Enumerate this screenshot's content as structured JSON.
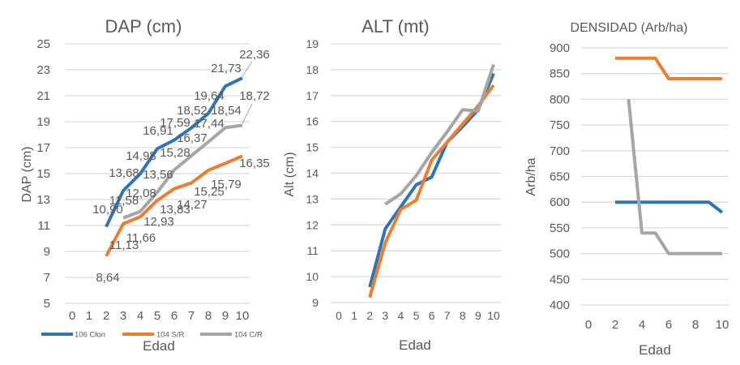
{
  "colors": {
    "106 Clon": "#2E75B6",
    "104 S/R": "#ED7D31",
    "104 C/R": "#A5A5A5",
    "grid": "#D9D9D9",
    "text": "#595959"
  },
  "chart_data": [
    {
      "type": "line",
      "title": "DAP (cm)",
      "xlabel": "Edad",
      "ylabel": "DAP (cm)",
      "x_ticks": [
        "0",
        "1",
        "2",
        "3",
        "4",
        "5",
        "6",
        "7",
        "8",
        "9",
        "10"
      ],
      "y_ticks": [
        "5",
        "7",
        "9",
        "11",
        "13",
        "15",
        "17",
        "19",
        "21",
        "23",
        "25"
      ],
      "ylim": [
        5,
        25
      ],
      "xlim": [
        0,
        10
      ],
      "grid": true,
      "legend": "bottom",
      "data_labels": true,
      "series": [
        {
          "name": "106 Clon",
          "x": [
            2,
            3,
            4,
            5,
            6,
            7,
            8,
            9,
            10
          ],
          "values": [
            10.9,
            13.68,
            14.98,
            16.91,
            17.59,
            18.52,
            19.64,
            21.73,
            22.36
          ],
          "labels": [
            "10,90",
            "13,68",
            "14,98",
            "16,91",
            "17,59",
            "18,52",
            "19,64",
            "21,73",
            "22,36"
          ]
        },
        {
          "name": "104 S/R",
          "x": [
            2,
            3,
            4,
            5,
            6,
            7,
            8,
            9,
            10
          ],
          "values": [
            8.64,
            11.13,
            11.66,
            12.93,
            13.83,
            14.27,
            15.25,
            15.79,
            16.35
          ],
          "labels": [
            "8,64",
            "11,13",
            "11,66",
            "12,93",
            "13,83",
            "14,27",
            "15,25",
            "15,79",
            "16,35"
          ]
        },
        {
          "name": "104 C/R",
          "x": [
            3,
            4,
            5,
            6,
            7,
            8,
            9,
            10
          ],
          "values": [
            11.58,
            12.08,
            13.56,
            15.28,
            16.37,
            17.44,
            18.54,
            18.72
          ],
          "labels": [
            "11,58",
            "12,08",
            "13,56",
            "15,28",
            "16,37",
            "17,44",
            "18,54",
            "18,72"
          ]
        }
      ]
    },
    {
      "type": "line",
      "title": "ALT (mt)",
      "xlabel": "Edad",
      "ylabel": "Alt (cm)",
      "x_ticks": [
        "0",
        "1",
        "2",
        "3",
        "4",
        "5",
        "6",
        "7",
        "8",
        "9",
        "10"
      ],
      "y_ticks": [
        "9",
        "10",
        "11",
        "12",
        "13",
        "14",
        "15",
        "16",
        "17",
        "18",
        "19"
      ],
      "ylim": [
        9,
        19
      ],
      "xlim": [
        0,
        10
      ],
      "grid": true,
      "series": [
        {
          "name": "106 Clon",
          "x": [
            2,
            3,
            4,
            5,
            6,
            7,
            8,
            9,
            10
          ],
          "values": [
            9.6,
            11.85,
            12.7,
            13.55,
            13.85,
            15.2,
            15.8,
            16.45,
            17.85
          ]
        },
        {
          "name": "104 S/R",
          "x": [
            2,
            3,
            4,
            5,
            6,
            7,
            8,
            9,
            10
          ],
          "values": [
            9.2,
            11.3,
            12.6,
            12.95,
            14.5,
            15.2,
            15.9,
            16.6,
            17.4
          ]
        },
        {
          "name": "104 C/R",
          "x": [
            3,
            4,
            5,
            6,
            7,
            8,
            9,
            10
          ],
          "values": [
            12.8,
            13.2,
            13.9,
            14.8,
            15.6,
            16.45,
            16.4,
            18.2
          ]
        }
      ]
    },
    {
      "type": "line",
      "title": "DENSIDAD (Arb/ha)",
      "xlabel": "Edad",
      "ylabel": "Arb/ha",
      "x_ticks": [
        "0",
        "2",
        "4",
        "6",
        "8",
        "10"
      ],
      "y_ticks": [
        "400",
        "450",
        "500",
        "550",
        "600",
        "650",
        "700",
        "750",
        "800",
        "850",
        "900"
      ],
      "ylim": [
        400,
        900
      ],
      "xlim": [
        0,
        10
      ],
      "grid": true,
      "series": [
        {
          "name": "106 Clon",
          "x": [
            2,
            3,
            4,
            5,
            6,
            7,
            8,
            9,
            10
          ],
          "values": [
            600,
            600,
            600,
            600,
            600,
            600,
            600,
            600,
            580
          ]
        },
        {
          "name": "104 S/R",
          "x": [
            2,
            3,
            4,
            5,
            6,
            7,
            8,
            9,
            10
          ],
          "values": [
            880,
            880,
            880,
            880,
            840,
            840,
            840,
            840,
            840
          ]
        },
        {
          "name": "104 C/R",
          "x": [
            3,
            4,
            5,
            6,
            7,
            8,
            9,
            10
          ],
          "values": [
            800,
            540,
            540,
            500,
            500,
            500,
            500,
            500
          ]
        }
      ]
    }
  ]
}
